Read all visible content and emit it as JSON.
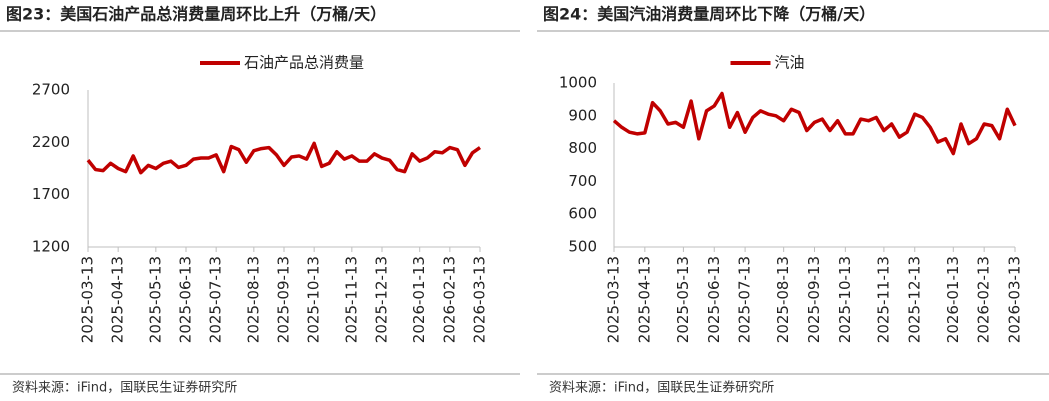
{
  "chart_data": [
    {
      "type": "line",
      "title": "图23：美国石油产品总消费量周环比上升（万桶/天）",
      "source": "资料来源：iFind，国联民生证券研究所",
      "categories": [
        "2025-03-13",
        null,
        null,
        null,
        "2025-04-13",
        null,
        null,
        null,
        null,
        "2025-05-13",
        null,
        null,
        null,
        "2025-06-13",
        null,
        null,
        null,
        "2025-07-13",
        null,
        null,
        null,
        null,
        "2025-08-13",
        null,
        null,
        null,
        "2025-09-13",
        null,
        null,
        null,
        "2025-10-13",
        null,
        null,
        null,
        null,
        "2025-11-13",
        null,
        null,
        null,
        "2025-12-13",
        null,
        null,
        null,
        null,
        "2026-01-13",
        null,
        null,
        null,
        "2026-02-13",
        null,
        null,
        null,
        "2026-03-13"
      ],
      "series": [
        {
          "name": "石油产品总消费量",
          "color": "#c00000",
          "values": [
            2030,
            1940,
            1930,
            2000,
            1950,
            1920,
            2070,
            1910,
            1980,
            1950,
            2000,
            2020,
            1960,
            1980,
            2040,
            2050,
            2050,
            2080,
            1920,
            2160,
            2130,
            2010,
            2120,
            2140,
            2150,
            2080,
            1980,
            2060,
            2070,
            2040,
            2190,
            1970,
            2000,
            2110,
            2040,
            2070,
            2020,
            2020,
            2090,
            2050,
            2030,
            1940,
            1920,
            2090,
            2020,
            2050,
            2110,
            2100,
            2150,
            2130,
            1980,
            2100,
            2150
          ]
        }
      ],
      "ylim": [
        1200,
        2700
      ],
      "yticks": [
        1200,
        1700,
        2200,
        2700
      ],
      "legend": "top"
    },
    {
      "type": "line",
      "title": "图24：美国汽油消费量周环比下降（万桶/天）",
      "source": "资料来源：iFind，国联民生证券研究所",
      "categories": [
        "2025-03-13",
        null,
        null,
        null,
        "2025-04-13",
        null,
        null,
        null,
        null,
        "2025-05-13",
        null,
        null,
        null,
        "2025-06-13",
        null,
        null,
        null,
        "2025-07-13",
        null,
        null,
        null,
        null,
        "2025-08-13",
        null,
        null,
        null,
        "2025-09-13",
        null,
        null,
        null,
        "2025-10-13",
        null,
        null,
        null,
        null,
        "2025-11-13",
        null,
        null,
        null,
        "2025-12-13",
        null,
        null,
        null,
        null,
        "2026-01-13",
        null,
        null,
        null,
        "2026-02-13",
        null,
        null,
        null,
        "2026-03-13"
      ],
      "series": [
        {
          "name": "汽油",
          "color": "#c00000",
          "values": [
            885,
            865,
            850,
            845,
            848,
            940,
            915,
            875,
            880,
            865,
            945,
            830,
            915,
            930,
            968,
            865,
            910,
            850,
            895,
            915,
            905,
            900,
            885,
            920,
            910,
            855,
            880,
            890,
            855,
            885,
            845,
            845,
            890,
            885,
            895,
            855,
            875,
            835,
            850,
            905,
            895,
            865,
            820,
            830,
            785,
            875,
            815,
            830,
            875,
            870,
            830,
            920,
            870
          ]
        }
      ],
      "ylim": [
        500,
        1000
      ],
      "yticks": [
        500,
        600,
        700,
        800,
        900,
        1000
      ],
      "legend": "top"
    }
  ]
}
